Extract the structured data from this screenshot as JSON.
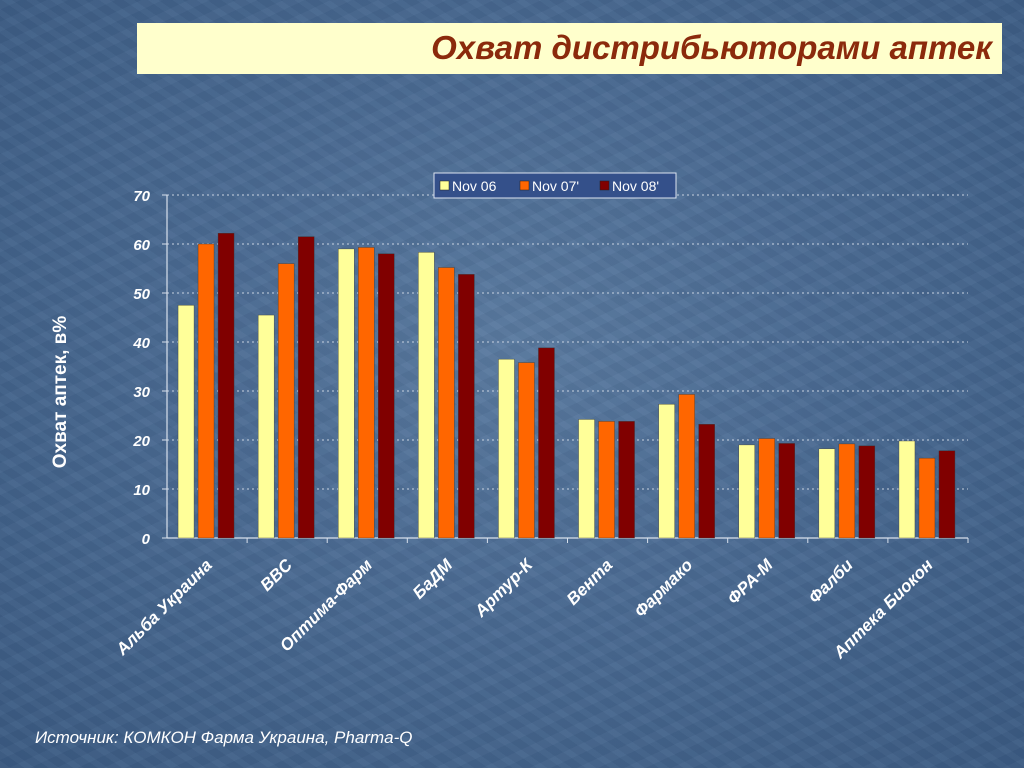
{
  "slide": {
    "title": "Охват дистрибьюторами аптек",
    "source": "Источник: КОМКОН Фарма Украина, Pharma-Q"
  },
  "chart_data": {
    "type": "bar",
    "ylabel": "Охват аптек, в%",
    "xlabel": "",
    "ylim": [
      0,
      70
    ],
    "yticks": [
      0,
      10,
      20,
      30,
      40,
      50,
      60,
      70
    ],
    "grid": true,
    "legend_position": "top-right",
    "categories": [
      "Альба Украина",
      "BBC",
      "Оптима-Фарм",
      "БаДМ",
      "Артур-К",
      "Вента",
      "Фармако",
      "ФРА-М",
      "Фалби",
      "Аптека Биокон"
    ],
    "series": [
      {
        "name": "Nov 06",
        "color": "#ffff99",
        "values": [
          47.5,
          45.5,
          59,
          58.3,
          36.5,
          24.2,
          27.3,
          19,
          18.2,
          19.8
        ]
      },
      {
        "name": "Nov 07'",
        "color": "#ff6600",
        "values": [
          60,
          56,
          59.3,
          55.2,
          35.8,
          23.8,
          29.3,
          20.3,
          19.2,
          16.3
        ]
      },
      {
        "name": "Nov 08'",
        "color": "#800000",
        "values": [
          62.2,
          61.5,
          58,
          53.8,
          38.8,
          23.8,
          23.2,
          19.3,
          18.8,
          17.8
        ]
      }
    ]
  }
}
